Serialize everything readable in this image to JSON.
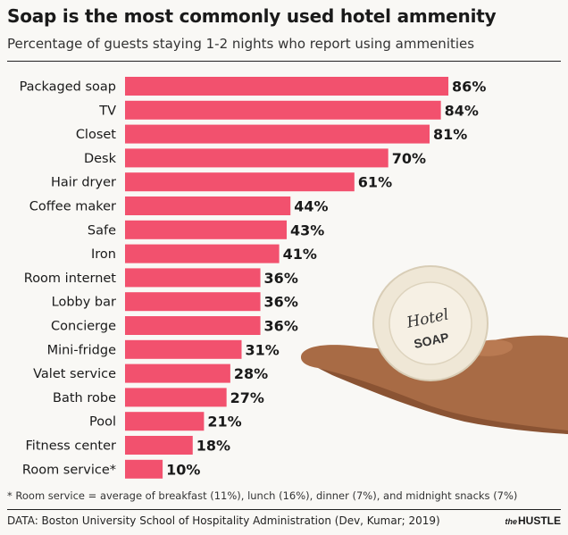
{
  "title": "Soap is the most commonly used hotel ammenity",
  "subtitle": "Percentage of guests staying 1-2 nights who report using ammenities",
  "footnote": "* Room service = average of breakfast (11%), lunch (16%), dinner (7%), and midnight snacks (7%)",
  "source": "DATA: Boston University School of Hospitality Administration (Dev, Kumar; 2019)",
  "logo": {
    "prefix": "the",
    "name": "HUSTLE"
  },
  "illustration": {
    "soap_line1": "Hotel",
    "soap_line2": "SOAP"
  },
  "colors": {
    "bar": "#f2516e",
    "accent": "#f2516e"
  },
  "chart_data": {
    "type": "bar",
    "orientation": "horizontal",
    "categories": [
      "Packaged soap",
      "TV",
      "Closet",
      "Desk",
      "Hair dryer",
      "Coffee maker",
      "Safe",
      "Iron",
      "Room internet",
      "Lobby bar",
      "Concierge",
      "Mini-fridge",
      "Valet service",
      "Bath robe",
      "Pool",
      "Fitness center",
      "Room service*"
    ],
    "values": [
      86,
      84,
      81,
      70,
      61,
      44,
      43,
      41,
      36,
      36,
      36,
      31,
      28,
      27,
      21,
      18,
      10
    ],
    "value_labels": [
      "86%",
      "84%",
      "81%",
      "70%",
      "61%",
      "44%",
      "43%",
      "41%",
      "36%",
      "36%",
      "36%",
      "31%",
      "28%",
      "27%",
      "21%",
      "18%",
      "10%"
    ],
    "xlim": [
      0,
      100
    ],
    "title": "Soap is the most commonly used hotel ammenity",
    "xlabel": "",
    "ylabel": "",
    "grid": false,
    "legend": "none"
  }
}
